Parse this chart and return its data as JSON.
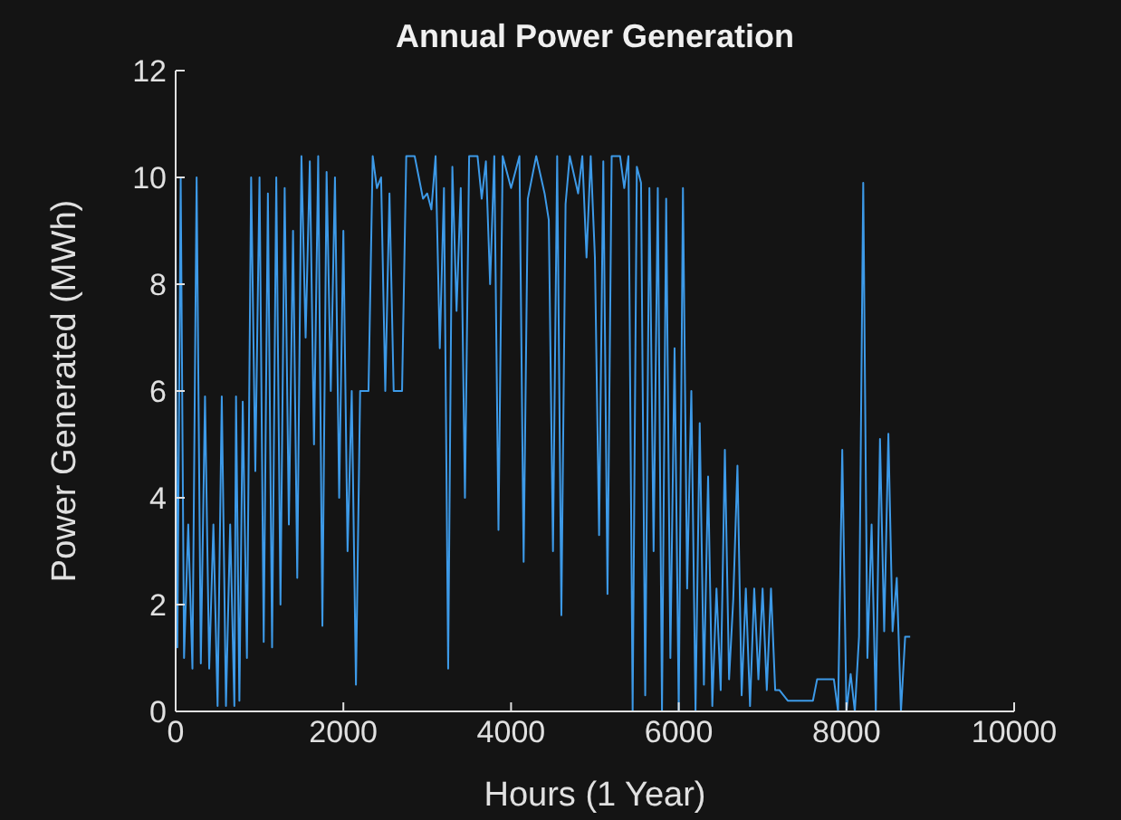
{
  "chart_data": {
    "type": "line",
    "title": "Annual Power Generation",
    "xlabel": "Hours (1 Year)",
    "ylabel": "Power Generated (MWh)",
    "xlim": [
      0,
      10000
    ],
    "xticks": [
      0,
      2000,
      4000,
      6000,
      8000,
      10000
    ],
    "ylim": [
      0,
      12
    ],
    "yticks": [
      0,
      2,
      4,
      6,
      8,
      10,
      12
    ],
    "grid": false,
    "legend": false,
    "marker": "none",
    "line_style": "solid",
    "x": [
      0,
      20,
      60,
      100,
      150,
      200,
      250,
      300,
      350,
      400,
      450,
      500,
      550,
      600,
      650,
      700,
      720,
      760,
      800,
      850,
      900,
      950,
      1000,
      1050,
      1100,
      1150,
      1200,
      1250,
      1300,
      1350,
      1400,
      1450,
      1500,
      1550,
      1600,
      1650,
      1700,
      1750,
      1800,
      1850,
      1900,
      1950,
      2000,
      2050,
      2100,
      2150,
      2200,
      2300,
      2350,
      2400,
      2450,
      2500,
      2550,
      2600,
      2700,
      2750,
      2850,
      2900,
      2950,
      3000,
      3050,
      3100,
      3150,
      3200,
      3250,
      3300,
      3350,
      3400,
      3450,
      3500,
      3600,
      3650,
      3700,
      3750,
      3800,
      3850,
      3900,
      4000,
      4100,
      4150,
      4200,
      4300,
      4400,
      4450,
      4500,
      4550,
      4600,
      4650,
      4700,
      4800,
      4850,
      4900,
      4950,
      5000,
      5050,
      5100,
      5150,
      5200,
      5300,
      5350,
      5400,
      5450,
      5500,
      5550,
      5600,
      5650,
      5700,
      5750,
      5800,
      5850,
      5900,
      5950,
      6000,
      6050,
      6100,
      6150,
      6200,
      6250,
      6300,
      6350,
      6400,
      6450,
      6500,
      6550,
      6600,
      6650,
      6700,
      6750,
      6800,
      6850,
      6900,
      6950,
      7000,
      7050,
      7100,
      7150,
      7200,
      7300,
      7600,
      7650,
      7850,
      7900,
      7950,
      8000,
      8050,
      8100,
      8150,
      8200,
      8250,
      8300,
      8350,
      8400,
      8450,
      8500,
      8550,
      8600,
      8650,
      8700,
      8760
    ],
    "series": [
      {
        "color": "#3d9ae8",
        "values": [
          8.8,
          1.2,
          10,
          1,
          3.5,
          0.8,
          10,
          0.9,
          5.9,
          0.8,
          3.5,
          0.1,
          5.9,
          0.1,
          3.5,
          0.1,
          5.9,
          0.2,
          5.8,
          1,
          10,
          4.5,
          10,
          1.3,
          9.7,
          1.2,
          10,
          2,
          9.8,
          3.5,
          9,
          2.5,
          10.4,
          7,
          10.3,
          5,
          10.4,
          1.6,
          10.1,
          6,
          10,
          4,
          9,
          3,
          6,
          0.5,
          6,
          6,
          10.4,
          9.8,
          10,
          6,
          9.7,
          6,
          6,
          10.4,
          10.4,
          10,
          9.6,
          9.7,
          9.4,
          10.4,
          6.8,
          9.8,
          0.8,
          10.2,
          7.5,
          9.8,
          4,
          10.4,
          10.4,
          9.6,
          10.3,
          8,
          10.4,
          3.4,
          10.4,
          9.8,
          10.4,
          2.8,
          9.6,
          10.4,
          9.7,
          9.2,
          3,
          10.4,
          1.8,
          9.5,
          10.4,
          9.7,
          10.4,
          8.5,
          10.4,
          8.5,
          3.3,
          10.3,
          2.2,
          10.4,
          10.4,
          9.8,
          10.4,
          0,
          10.2,
          9.9,
          0.3,
          9.8,
          3,
          9.8,
          0,
          9.6,
          1,
          6.8,
          0,
          9.8,
          2.3,
          6,
          0,
          5.4,
          0.5,
          4.4,
          0.1,
          2.3,
          0.4,
          4.9,
          0.6,
          2.1,
          4.6,
          0.3,
          2.3,
          0.1,
          2.3,
          0.6,
          2.3,
          0.4,
          2.3,
          0.4,
          0.4,
          0.2,
          0.2,
          0.6,
          0.6,
          0,
          4.9,
          0,
          0.7,
          0,
          1.4,
          9.9,
          1,
          3.5,
          0,
          5.1,
          1.5,
          5.2,
          1.5,
          2.5,
          0,
          1.4,
          1.4
        ]
      }
    ]
  }
}
